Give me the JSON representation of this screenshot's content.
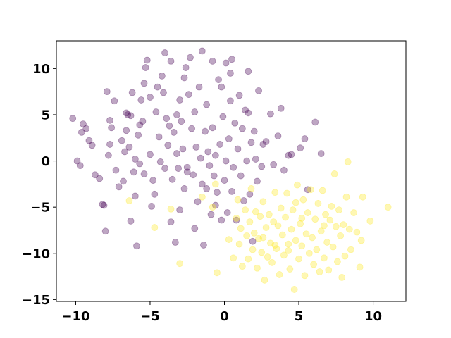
{
  "chart_data": {
    "type": "scatter",
    "title": "",
    "xlabel": "",
    "ylabel": "",
    "xlim": [
      -11.3,
      12.2
    ],
    "ylim": [
      -15.2,
      13.0
    ],
    "xticks": [
      -10,
      -5,
      0,
      5,
      10
    ],
    "yticks": [
      -15,
      -10,
      -5,
      0,
      5,
      10
    ],
    "xtick_labels": [
      "−10",
      "−5",
      "0",
      "5",
      "10"
    ],
    "ytick_labels": [
      "−15",
      "−10",
      "−5",
      "0",
      "5",
      "10"
    ],
    "grid": false,
    "legend": "none",
    "marker_alpha": 0.35,
    "series": [
      {
        "color": "#440154",
        "points": [
          [
            -10.2,
            4.6
          ],
          [
            -9.9,
            0.0
          ],
          [
            -9.7,
            -0.5
          ],
          [
            -9.6,
            3.1
          ],
          [
            -9.5,
            4.0
          ],
          [
            -9.3,
            3.5
          ],
          [
            -9.1,
            2.2
          ],
          [
            -8.9,
            1.7
          ],
          [
            -8.7,
            -1.5
          ],
          [
            -8.4,
            -1.9
          ],
          [
            -8.2,
            -4.7
          ],
          [
            -8.1,
            -4.8
          ],
          [
            -8.0,
            -7.6
          ],
          [
            -7.9,
            7.5
          ],
          [
            -7.8,
            0.6
          ],
          [
            -7.7,
            4.4
          ],
          [
            -7.7,
            1.8
          ],
          [
            -7.6,
            3.6
          ],
          [
            -7.4,
            6.5
          ],
          [
            -7.3,
            -1.0
          ],
          [
            -7.1,
            -2.8
          ],
          [
            -6.9,
            2.2
          ],
          [
            -6.8,
            -2.2
          ],
          [
            -6.7,
            1.0
          ],
          [
            -6.6,
            3.3
          ],
          [
            -6.5,
            5.0
          ],
          [
            -6.4,
            1.5
          ],
          [
            -6.3,
            -6.5
          ],
          [
            -6.3,
            4.9
          ],
          [
            -6.2,
            7.4
          ],
          [
            -6.1,
            -1.2
          ],
          [
            -6.0,
            -3.8
          ],
          [
            -6.0,
            0.2
          ],
          [
            -5.9,
            -9.2
          ],
          [
            -5.8,
            2.8
          ],
          [
            -5.7,
            3.9
          ],
          [
            -5.7,
            -0.3
          ],
          [
            -5.6,
            6.6
          ],
          [
            -5.5,
            4.3
          ],
          [
            -5.4,
            -1.4
          ],
          [
            -5.3,
            10.1
          ],
          [
            -5.2,
            10.9
          ],
          [
            -5.0,
            6.9
          ],
          [
            -5.0,
            0.7
          ],
          [
            -4.9,
            -4.9
          ],
          [
            -4.8,
            -2.1
          ],
          [
            -4.7,
            -3.6
          ],
          [
            -4.6,
            5.3
          ],
          [
            -4.4,
            2.6
          ],
          [
            -4.3,
            -0.1
          ],
          [
            -4.2,
            9.2
          ],
          [
            -4.1,
            7.4
          ],
          [
            -4.0,
            11.7
          ],
          [
            -4.0,
            -0.8
          ],
          [
            -3.9,
            4.6
          ],
          [
            -3.8,
            1.7
          ],
          [
            -3.7,
            3.8
          ],
          [
            -3.6,
            -6.6
          ],
          [
            -3.6,
            10.8
          ],
          [
            -3.5,
            -2.0
          ],
          [
            -3.4,
            3.1
          ],
          [
            -3.3,
            -8.8
          ],
          [
            -3.2,
            0.8
          ],
          [
            -3.1,
            -0.8
          ],
          [
            -3.0,
            6.6
          ],
          [
            -3.0,
            -5.3
          ],
          [
            -2.9,
            4.3
          ],
          [
            -2.8,
            1.3
          ],
          [
            -2.7,
            -3.0
          ],
          [
            -2.6,
            10.1
          ],
          [
            -2.5,
            -0.7
          ],
          [
            -2.4,
            7.2
          ],
          [
            -2.3,
            11.2
          ],
          [
            -2.2,
            3.5
          ],
          [
            -2.1,
            -1.5
          ],
          [
            -2.0,
            -7.3
          ],
          [
            -2.0,
            5.3
          ],
          [
            -1.9,
            1.5
          ],
          [
            -1.8,
            -4.4
          ],
          [
            -1.7,
            8.0
          ],
          [
            -1.6,
            0.3
          ],
          [
            -1.5,
            11.9
          ],
          [
            -1.5,
            -2.5
          ],
          [
            -1.4,
            -9.1
          ],
          [
            -1.3,
            3.2
          ],
          [
            -1.2,
            6.1
          ],
          [
            -1.1,
            1.0
          ],
          [
            -1.0,
            -0.5
          ],
          [
            -0.9,
            -5.8
          ],
          [
            -0.8,
            10.8
          ],
          [
            -0.8,
            3.6
          ],
          [
            -0.7,
            -1.6
          ],
          [
            -0.6,
            0.6
          ],
          [
            -0.5,
            -3.4
          ],
          [
            -0.4,
            8.8
          ],
          [
            -0.3,
            1.8
          ],
          [
            -0.2,
            -6.4
          ],
          [
            -0.1,
            4.8
          ],
          [
            0.0,
            -2.1
          ],
          [
            0.1,
            10.6
          ],
          [
            0.1,
            0.0
          ],
          [
            0.2,
            -5.6
          ],
          [
            0.3,
            2.4
          ],
          [
            0.4,
            6.5
          ],
          [
            0.5,
            -3.3
          ],
          [
            0.5,
            11.0
          ],
          [
            0.6,
            -0.7
          ],
          [
            0.7,
            4.1
          ],
          [
            0.8,
            -6.4
          ],
          [
            0.9,
            1.3
          ],
          [
            1.0,
            7.1
          ],
          [
            1.1,
            -1.6
          ],
          [
            1.2,
            3.5
          ],
          [
            1.3,
            -4.3
          ],
          [
            1.4,
            5.5
          ],
          [
            1.5,
            0.0
          ],
          [
            1.6,
            9.7
          ],
          [
            1.7,
            -3.6
          ],
          [
            1.8,
            2.0
          ],
          [
            1.9,
            -8.7
          ],
          [
            2.0,
            3.2
          ],
          [
            2.1,
            0.2
          ],
          [
            2.3,
            7.6
          ],
          [
            2.5,
            -0.6
          ],
          [
            2.6,
            1.8
          ],
          [
            2.8,
            2.1
          ],
          [
            3.1,
            5.1
          ],
          [
            3.3,
            -0.4
          ],
          [
            3.6,
            2.7
          ],
          [
            3.8,
            5.7
          ],
          [
            4.0,
            -1.0
          ],
          [
            4.3,
            0.6
          ],
          [
            4.5,
            0.7
          ],
          [
            5.1,
            1.4
          ],
          [
            5.4,
            2.4
          ],
          [
            5.6,
            -3.1
          ],
          [
            6.1,
            4.2
          ],
          [
            6.5,
            0.8
          ],
          [
            -2.7,
            9.0
          ],
          [
            -5.4,
            8.4
          ],
          [
            -0.2,
            8.0
          ],
          [
            -4.5,
            8.0
          ],
          [
            -3.2,
            5.0
          ],
          [
            0.4,
            9.5
          ],
          [
            -6.6,
            5.2
          ],
          [
            2.2,
            -2.2
          ],
          [
            -1.2,
            -3.0
          ],
          [
            -2.5,
            -1.2
          ],
          [
            -0.6,
            -4.8
          ],
          [
            1.6,
            5.2
          ]
        ]
      },
      {
        "color": "#fde725",
        "points": [
          [
            -6.4,
            -4.3
          ],
          [
            -4.7,
            -7.2
          ],
          [
            -3.6,
            -5.2
          ],
          [
            -3.0,
            -11.1
          ],
          [
            -1.5,
            -3.9
          ],
          [
            -0.8,
            -5.0
          ],
          [
            -0.5,
            -12.1
          ],
          [
            -0.6,
            -2.5
          ],
          [
            0.3,
            -8.5
          ],
          [
            0.6,
            -10.5
          ],
          [
            0.8,
            -6.2
          ],
          [
            0.9,
            -4.2
          ],
          [
            1.0,
            -9.0
          ],
          [
            1.1,
            -7.3
          ],
          [
            1.2,
            -11.4
          ],
          [
            1.4,
            -5.3
          ],
          [
            1.5,
            -8.1
          ],
          [
            1.6,
            -10.6
          ],
          [
            1.7,
            -6.6
          ],
          [
            1.8,
            -3.0
          ],
          [
            1.9,
            -9.6
          ],
          [
            2.0,
            -7.8
          ],
          [
            2.1,
            -5.5
          ],
          [
            2.2,
            -11.6
          ],
          [
            2.3,
            -8.4
          ],
          [
            2.4,
            -6.0
          ],
          [
            2.5,
            -9.9
          ],
          [
            2.6,
            -4.4
          ],
          [
            2.7,
            -12.9
          ],
          [
            2.8,
            -7.2
          ],
          [
            2.9,
            -10.4
          ],
          [
            3.0,
            -5.8
          ],
          [
            3.1,
            -8.9
          ],
          [
            3.2,
            -11.0
          ],
          [
            3.3,
            -6.6
          ],
          [
            3.4,
            -3.4
          ],
          [
            3.5,
            -9.5
          ],
          [
            3.6,
            -7.0
          ],
          [
            3.7,
            -12.3
          ],
          [
            3.8,
            -5.1
          ],
          [
            3.9,
            -8.0
          ],
          [
            4.0,
            -10.2
          ],
          [
            4.1,
            -6.1
          ],
          [
            4.2,
            -3.5
          ],
          [
            4.3,
            -9.0
          ],
          [
            4.4,
            -11.7
          ],
          [
            4.5,
            -7.4
          ],
          [
            4.6,
            -5.3
          ],
          [
            4.7,
            -13.9
          ],
          [
            4.8,
            -8.6
          ],
          [
            4.9,
            -2.6
          ],
          [
            5.0,
            -10.6
          ],
          [
            5.1,
            -6.8
          ],
          [
            5.2,
            -9.2
          ],
          [
            5.3,
            -4.2
          ],
          [
            5.4,
            -12.4
          ],
          [
            5.5,
            -7.9
          ],
          [
            5.6,
            -5.6
          ],
          [
            5.7,
            -10.0
          ],
          [
            5.8,
            -3.1
          ],
          [
            5.9,
            -8.3
          ],
          [
            6.0,
            -11.2
          ],
          [
            6.1,
            -6.3
          ],
          [
            6.2,
            -9.6
          ],
          [
            6.3,
            -4.6
          ],
          [
            6.4,
            -12.0
          ],
          [
            6.5,
            -7.6
          ],
          [
            6.6,
            -3.2
          ],
          [
            6.7,
            -10.5
          ],
          [
            6.8,
            -5.8
          ],
          [
            6.9,
            -8.8
          ],
          [
            7.0,
            -11.8
          ],
          [
            7.1,
            -6.4
          ],
          [
            7.2,
            -4.9
          ],
          [
            7.3,
            -9.3
          ],
          [
            7.4,
            -1.4
          ],
          [
            7.5,
            -7.1
          ],
          [
            7.6,
            -10.9
          ],
          [
            7.7,
            -5.3
          ],
          [
            7.8,
            -8.1
          ],
          [
            7.9,
            -12.6
          ],
          [
            8.0,
            -6.9
          ],
          [
            8.1,
            -10.3
          ],
          [
            8.2,
            -3.9
          ],
          [
            8.3,
            -0.1
          ],
          [
            8.4,
            -7.4
          ],
          [
            8.5,
            -9.6
          ],
          [
            8.7,
            -5.6
          ],
          [
            8.9,
            -7.7
          ],
          [
            9.1,
            -11.5
          ],
          [
            9.2,
            -8.6
          ],
          [
            9.3,
            -3.9
          ],
          [
            9.8,
            -6.5
          ],
          [
            11.0,
            -5.0
          ],
          [
            4.3,
            -9.7
          ],
          [
            3.4,
            -9.1
          ],
          [
            2.6,
            -8.3
          ],
          [
            5.2,
            -6.2
          ],
          [
            6.7,
            -7.0
          ],
          [
            4.8,
            -4.5
          ]
        ]
      }
    ]
  }
}
